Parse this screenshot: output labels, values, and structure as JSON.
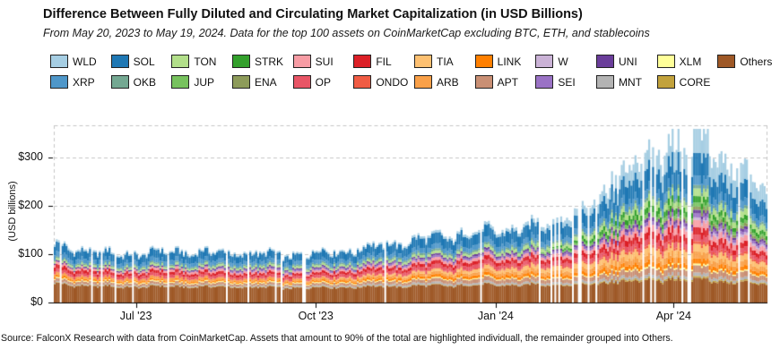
{
  "header": {
    "title": "Difference Between Fully Diluted and Circulating Market Capitalization (in USD Billions)",
    "subtitle": "From May 20, 2023 to May 19, 2024. Data for the top 100 assets on CoinMarketCap excluding BTC, ETH, and stablecoins"
  },
  "footer": {
    "source": "Source: FalconX Research with data from CoinMarketCap. Assets that amount to 90% of the total are highlighted individuall, the remainder grouped into Others."
  },
  "legend": {
    "rows": [
      [
        "WLD",
        "SOL",
        "TON",
        "STRK",
        "SUI",
        "FIL",
        "TIA",
        "LINK",
        "W",
        "UNI",
        "XLM",
        "Others"
      ],
      [
        "XRP",
        "OKB",
        "JUP",
        "ENA",
        "OP",
        "ONDO",
        "ARB",
        "APT",
        "SEI",
        "MNT",
        "CORE"
      ]
    ]
  },
  "chart_data": {
    "type": "area",
    "stacked": true,
    "title": "Difference Between Fully Diluted and Circulating Market Capitalization (in USD Billions)",
    "xlabel": "",
    "ylabel": "(USD billions)",
    "y_ticks": [
      "$0",
      "$100",
      "$200",
      "$300"
    ],
    "y_tick_values": [
      0,
      100,
      200,
      300
    ],
    "ylim": [
      0,
      380
    ],
    "x_ticks": [
      "Jul '23",
      "Oct '23",
      "Jan '24",
      "Apr '24"
    ],
    "x_tick_days": [
      42,
      134,
      226,
      317
    ],
    "x_range_days": 365,
    "x_range": [
      "May 20, 2023",
      "May 19, 2024"
    ],
    "grid": "dashed-horizontal",
    "legend_position": "top",
    "sample_days": [
      0,
      30,
      61,
      91,
      122,
      152,
      183,
      214,
      245,
      275,
      306,
      336,
      365
    ],
    "units": "USD billions",
    "series": [
      {
        "name": "Others",
        "color": "#9e5826",
        "values": [
          38,
          32,
          33,
          32,
          30,
          32,
          34,
          36,
          36,
          38,
          42,
          44,
          38
        ]
      },
      {
        "name": "CORE",
        "color": "#c2a23c",
        "values": [
          1,
          1,
          1,
          1,
          1,
          1,
          1,
          1,
          1,
          2,
          3,
          3,
          2
        ]
      },
      {
        "name": "MNT",
        "color": "#b3b3b3",
        "values": [
          2,
          2,
          2,
          2,
          3,
          3,
          4,
          4,
          4,
          5,
          6,
          6,
          5
        ]
      },
      {
        "name": "APT",
        "color": "#c98f74",
        "values": [
          6,
          5,
          5,
          5,
          4,
          5,
          6,
          8,
          8,
          9,
          12,
          13,
          9
        ]
      },
      {
        "name": "XLM",
        "color": "#ffff99",
        "values": [
          2,
          2,
          2,
          2,
          2,
          2,
          2,
          2,
          2,
          2,
          3,
          3,
          2
        ]
      },
      {
        "name": "LINK",
        "color": "#ff7f00",
        "values": [
          4,
          3,
          3,
          3,
          3,
          4,
          5,
          6,
          6,
          7,
          9,
          9,
          7
        ]
      },
      {
        "name": "ARB",
        "color": "#f9a048",
        "values": [
          5,
          4,
          5,
          4,
          4,
          4,
          5,
          6,
          7,
          9,
          12,
          12,
          9
        ]
      },
      {
        "name": "TIA",
        "color": "#fdc071",
        "values": [
          0,
          0,
          0,
          0,
          0,
          2,
          4,
          6,
          8,
          10,
          14,
          13,
          9
        ]
      },
      {
        "name": "ONDO",
        "color": "#f05c44",
        "values": [
          1,
          1,
          1,
          1,
          1,
          1,
          1,
          2,
          2,
          3,
          5,
          5,
          4
        ]
      },
      {
        "name": "OP",
        "color": "#e85566",
        "values": [
          6,
          5,
          6,
          5,
          5,
          6,
          7,
          8,
          8,
          9,
          11,
          11,
          8
        ]
      },
      {
        "name": "FIL",
        "color": "#dc2027",
        "values": [
          8,
          6,
          6,
          6,
          5,
          6,
          7,
          8,
          8,
          10,
          14,
          13,
          9
        ]
      },
      {
        "name": "SUI",
        "color": "#f79ca4",
        "values": [
          5,
          4,
          5,
          4,
          4,
          4,
          5,
          6,
          6,
          8,
          12,
          13,
          9
        ]
      },
      {
        "name": "W",
        "color": "#cab2d6",
        "values": [
          0,
          0,
          0,
          0,
          0,
          0,
          0,
          0,
          0,
          0,
          0,
          6,
          4
        ]
      },
      {
        "name": "SEI",
        "color": "#9a72c5",
        "values": [
          0,
          0,
          0,
          3,
          3,
          3,
          4,
          4,
          4,
          5,
          7,
          7,
          5
        ]
      },
      {
        "name": "UNI",
        "color": "#6a3d9a",
        "values": [
          3,
          3,
          3,
          3,
          3,
          3,
          3,
          4,
          4,
          5,
          7,
          6,
          5
        ]
      },
      {
        "name": "ENA",
        "color": "#8d9b5a",
        "values": [
          0,
          0,
          0,
          0,
          0,
          0,
          0,
          0,
          0,
          0,
          2,
          7,
          5
        ]
      },
      {
        "name": "JUP",
        "color": "#77c25e",
        "values": [
          0,
          0,
          0,
          0,
          0,
          0,
          0,
          0,
          2,
          5,
          7,
          7,
          5
        ]
      },
      {
        "name": "STRK",
        "color": "#33a02c",
        "values": [
          0,
          0,
          0,
          0,
          0,
          0,
          0,
          0,
          0,
          8,
          12,
          11,
          8
        ]
      },
      {
        "name": "TON",
        "color": "#b2df8a",
        "values": [
          4,
          4,
          4,
          4,
          4,
          4,
          5,
          5,
          6,
          8,
          12,
          14,
          11
        ]
      },
      {
        "name": "OKB",
        "color": "#74a892",
        "values": [
          3,
          3,
          3,
          3,
          3,
          3,
          4,
          4,
          4,
          5,
          6,
          6,
          5
        ]
      },
      {
        "name": "XRP",
        "color": "#4f97c9",
        "values": [
          10,
          8,
          9,
          8,
          8,
          8,
          9,
          10,
          11,
          12,
          16,
          17,
          13
        ]
      },
      {
        "name": "SOL",
        "color": "#1f78b4",
        "values": [
          18,
          15,
          16,
          15,
          14,
          16,
          20,
          22,
          24,
          28,
          38,
          40,
          30
        ]
      },
      {
        "name": "WLD",
        "color": "#a6cee3",
        "values": [
          4,
          3,
          3,
          3,
          3,
          3,
          4,
          5,
          7,
          17,
          36,
          44,
          32
        ]
      }
    ]
  }
}
